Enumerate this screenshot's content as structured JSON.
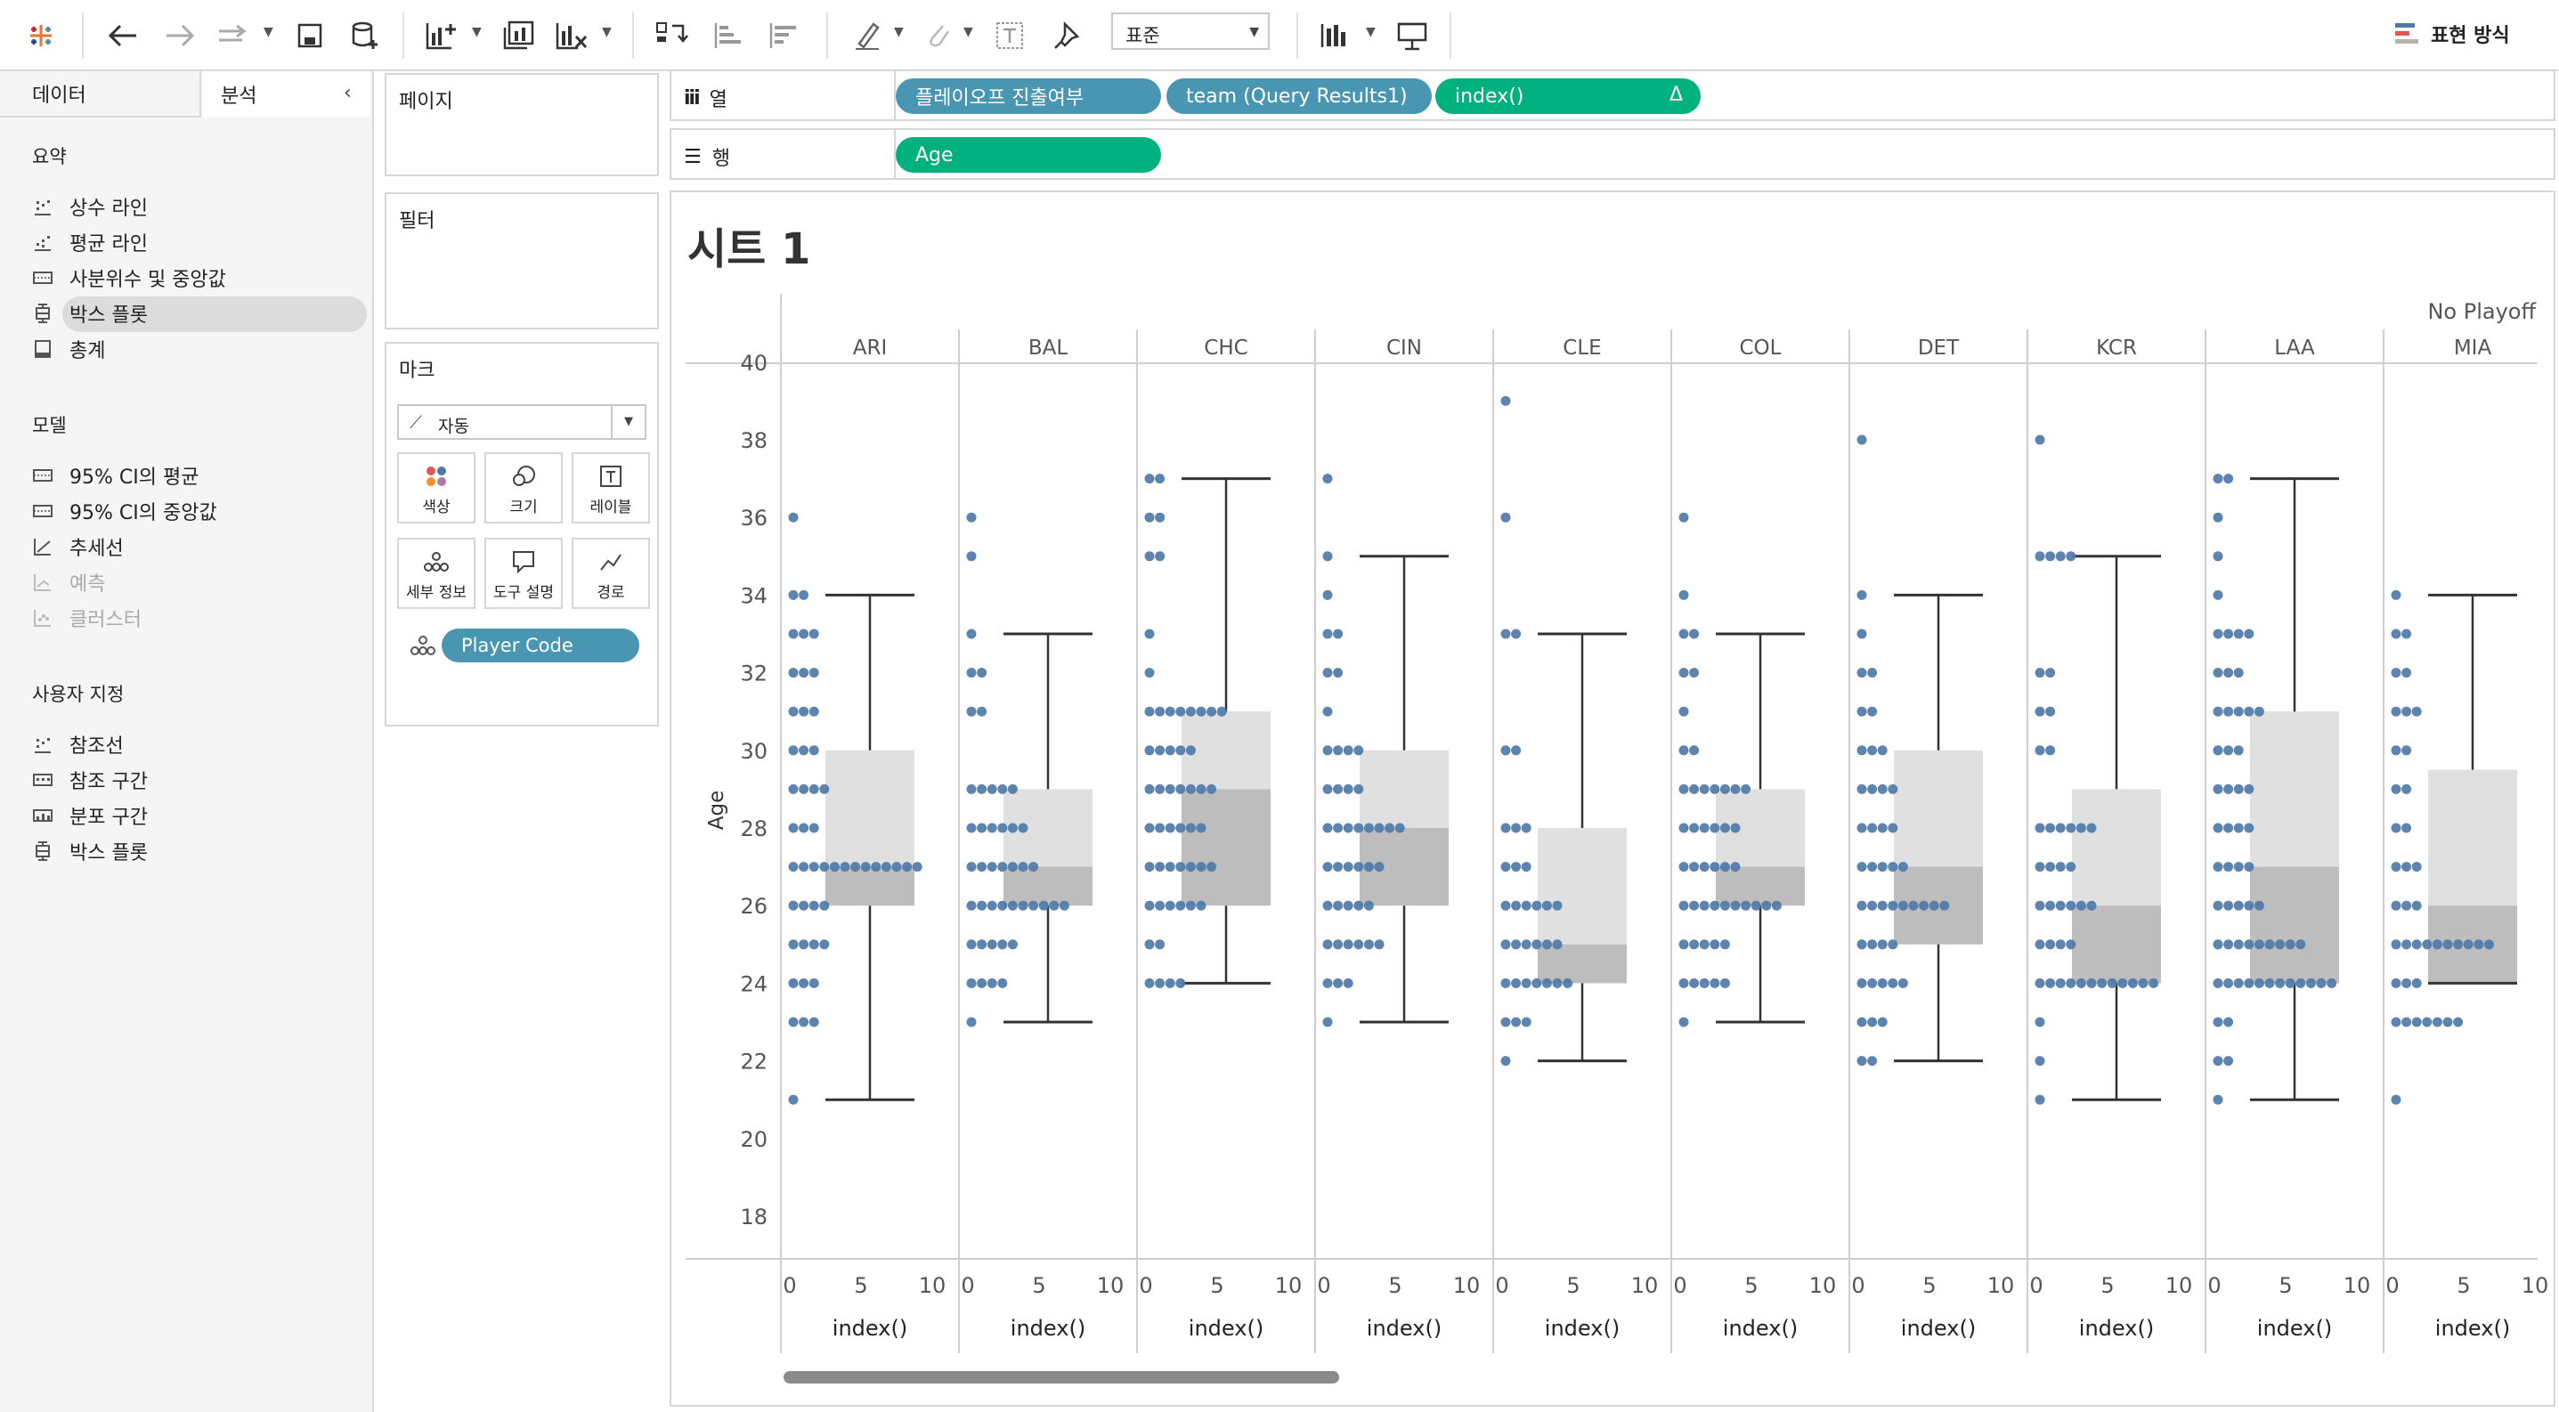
{
  "toolbar": {
    "fit_mode": "표준",
    "show_me_label": "표현 방식",
    "icons": [
      "tableau-logo-icon",
      "undo-icon",
      "redo-icon",
      "replay-icon",
      "save-icon",
      "new-datasource-icon",
      "new-worksheet-icon",
      "duplicate-sheet-icon",
      "clear-sheet-icon",
      "swap-icon",
      "sort-asc-icon",
      "sort-desc-icon",
      "highlight-icon",
      "group-icon",
      "label-icon",
      "pin-icon",
      "fit-icon",
      "presentation-icon"
    ]
  },
  "left_pane": {
    "tabs": [
      "데이터",
      "분석"
    ],
    "active_tab": "분석",
    "sections": [
      {
        "title": "요약",
        "items": [
          {
            "label": "상수 라인",
            "icon": "line-chart-icon",
            "enabled": true
          },
          {
            "label": "평균 라인",
            "icon": "line-chart-icon",
            "enabled": true
          },
          {
            "label": "사분위수 및 중앙값",
            "icon": "distribution-icon",
            "enabled": true
          },
          {
            "label": "박스 플롯",
            "icon": "boxplot-icon",
            "enabled": true,
            "selected": true
          },
          {
            "label": "총계",
            "icon": "totals-icon",
            "enabled": true
          }
        ]
      },
      {
        "title": "모델",
        "items": [
          {
            "label": "95% CI의 평균",
            "icon": "distribution-icon",
            "enabled": true
          },
          {
            "label": "95% CI의 중앙값",
            "icon": "distribution-icon",
            "enabled": true
          },
          {
            "label": "추세선",
            "icon": "trendline-icon",
            "enabled": true
          },
          {
            "label": "예측",
            "icon": "forecast-icon",
            "enabled": false
          },
          {
            "label": "클러스터",
            "icon": "cluster-icon",
            "enabled": false
          }
        ]
      },
      {
        "title": "사용자 지정",
        "items": [
          {
            "label": "참조선",
            "icon": "line-chart-icon",
            "enabled": true
          },
          {
            "label": "참조 구간",
            "icon": "band-icon",
            "enabled": true
          },
          {
            "label": "분포 구간",
            "icon": "distribution-icon",
            "enabled": true
          },
          {
            "label": "박스 플롯",
            "icon": "boxplot-icon",
            "enabled": true
          }
        ]
      }
    ]
  },
  "cards": {
    "pages_title": "페이지",
    "filters_title": "필터",
    "marks_title": "마크",
    "mark_type": "자동",
    "mark_buttons": [
      "색상",
      "크기",
      "레이블",
      "세부 정보",
      "도구 설명",
      "경로"
    ],
    "detail_pill": "Player Code"
  },
  "shelves": {
    "columns_label": "열",
    "rows_label": "행",
    "column_pills": [
      "플레이오프 진출여부",
      "team (Query Results1)",
      "index()"
    ],
    "index_delta": "Δ",
    "row_pills": [
      "Age"
    ]
  },
  "sheet": {
    "title": "시트 1"
  },
  "chart_data": {
    "type": "boxplot-scatter",
    "column_header": "No Playoff",
    "ylabel": "Age",
    "ylim": [
      18,
      40
    ],
    "y_ticks": [
      18,
      20,
      22,
      24,
      26,
      28,
      30,
      32,
      34,
      36,
      38,
      40
    ],
    "x_ticks": [
      0,
      5,
      10
    ],
    "xlabel": "index()",
    "colors": {
      "point": "#4e79a7",
      "box_upper": "#e0e0e0",
      "box_lower": "#bdbdbd",
      "whisker": "#333333"
    },
    "teams": [
      {
        "name": "ARI",
        "lower_whisker": 21,
        "q1": 26,
        "median": 27,
        "q3": 30,
        "upper_whisker": 34,
        "points": {
          "21": 1,
          "23": 3,
          "24": 3,
          "25": 4,
          "26": 4,
          "27": 13,
          "28": 3,
          "29": 4,
          "30": 3,
          "31": 3,
          "32": 3,
          "33": 3,
          "34": 2,
          "36": 1
        }
      },
      {
        "name": "BAL",
        "lower_whisker": 23,
        "q1": 26,
        "median": 27,
        "q3": 29,
        "upper_whisker": 33,
        "points": {
          "23": 1,
          "24": 4,
          "25": 5,
          "26": 10,
          "27": 7,
          "28": 6,
          "29": 5,
          "31": 2,
          "32": 2,
          "33": 1,
          "35": 1,
          "36": 1
        }
      },
      {
        "name": "CHC",
        "lower_whisker": 24,
        "q1": 26,
        "median": 29,
        "q3": 31,
        "upper_whisker": 37,
        "points": {
          "24": 4,
          "25": 2,
          "26": 6,
          "27": 7,
          "28": 6,
          "29": 7,
          "30": 5,
          "31": 8,
          "32": 1,
          "33": 1,
          "35": 2,
          "36": 2,
          "37": 2
        }
      },
      {
        "name": "CIN",
        "lower_whisker": 23,
        "q1": 26,
        "median": 28,
        "q3": 30,
        "upper_whisker": 35,
        "points": {
          "23": 1,
          "24": 3,
          "25": 6,
          "26": 5,
          "27": 6,
          "28": 8,
          "29": 4,
          "30": 4,
          "31": 1,
          "32": 2,
          "33": 2,
          "34": 1,
          "35": 1,
          "37": 1
        }
      },
      {
        "name": "CLE",
        "lower_whisker": 22,
        "q1": 24,
        "median": 25,
        "q3": 28,
        "upper_whisker": 33,
        "points": {
          "22": 1,
          "23": 3,
          "24": 7,
          "25": 6,
          "26": 6,
          "27": 3,
          "28": 3,
          "30": 2,
          "33": 2,
          "36": 1,
          "39": 1
        }
      },
      {
        "name": "COL",
        "lower_whisker": 23,
        "q1": 26,
        "median": 27,
        "q3": 29,
        "upper_whisker": 33,
        "points": {
          "23": 1,
          "24": 5,
          "25": 5,
          "26": 10,
          "27": 6,
          "28": 6,
          "29": 7,
          "30": 2,
          "31": 1,
          "32": 2,
          "33": 2,
          "34": 1,
          "36": 1
        }
      },
      {
        "name": "DET",
        "lower_whisker": 22,
        "q1": 25,
        "median": 27,
        "q3": 30,
        "upper_whisker": 34,
        "points": {
          "22": 2,
          "23": 3,
          "24": 5,
          "25": 4,
          "26": 9,
          "27": 5,
          "28": 4,
          "29": 4,
          "30": 3,
          "31": 2,
          "32": 2,
          "33": 1,
          "34": 1,
          "38": 1
        }
      },
      {
        "name": "KCR",
        "lower_whisker": 21,
        "q1": 24,
        "median": 26,
        "q3": 29,
        "upper_whisker": 35,
        "points": {
          "21": 1,
          "22": 1,
          "23": 1,
          "24": 12,
          "25": 4,
          "26": 6,
          "27": 4,
          "28": 6,
          "30": 2,
          "31": 2,
          "32": 2,
          "35": 4,
          "38": 1
        }
      },
      {
        "name": "LAA",
        "lower_whisker": 21,
        "q1": 24,
        "median": 27,
        "q3": 31,
        "upper_whisker": 37,
        "points": {
          "21": 1,
          "22": 2,
          "23": 2,
          "24": 12,
          "25": 9,
          "26": 5,
          "27": 4,
          "28": 4,
          "29": 4,
          "30": 3,
          "31": 5,
          "32": 3,
          "33": 4,
          "34": 1,
          "35": 1,
          "36": 1,
          "37": 2
        }
      },
      {
        "name": "MIA",
        "lower_whisker": 24,
        "q1": 24,
        "median": 26,
        "q3": 29.5,
        "upper_whisker": 34,
        "points": {
          "21": 1,
          "23": 7,
          "24": 3,
          "25": 10,
          "26": 3,
          "27": 3,
          "28": 2,
          "29": 2,
          "30": 2,
          "31": 3,
          "32": 2,
          "33": 2,
          "34": 1
        }
      }
    ]
  }
}
